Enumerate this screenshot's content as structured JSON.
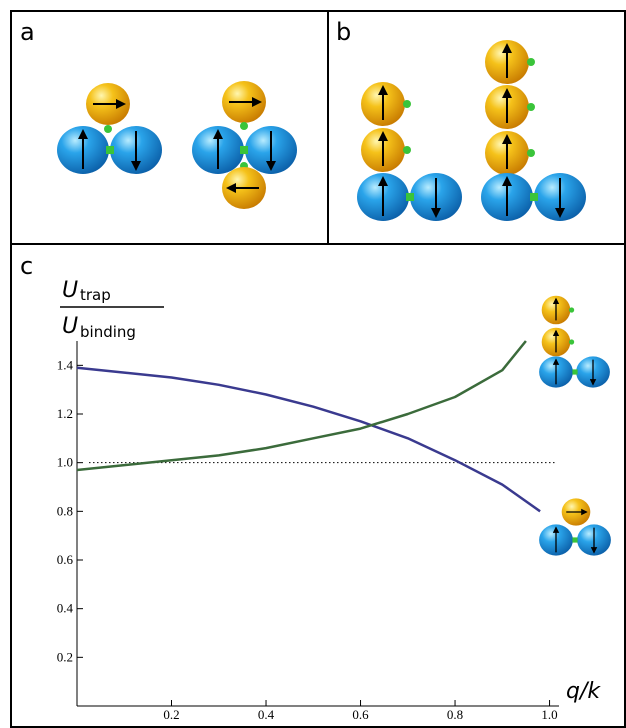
{
  "panel_labels": [
    "a",
    "b"
  ],
  "chart_data": {
    "type": "line",
    "panel_label": "c",
    "y_label": {
      "symbol": "U",
      "top_sub": "trap",
      "bottom_sub": "binding"
    },
    "x_label": "q/k",
    "xlim": [
      0,
      1.02
    ],
    "ylim": [
      0,
      1.5
    ],
    "xticks": [
      0.2,
      0.4,
      0.6,
      0.8,
      {
        "value": 1,
        "label": "1.0"
      }
    ],
    "yticks": [
      0.2,
      0.4,
      0.6,
      0.8,
      {
        "value": 1,
        "label": "1.0"
      },
      1.2,
      1.4
    ],
    "reference_line": 1,
    "series": [
      {
        "color": "#3a3a8f",
        "x": [
          0,
          0.1,
          0.2,
          0.3,
          0.4,
          0.5,
          0.6,
          0.7,
          0.8,
          0.9,
          0.98
        ],
        "values": [
          1.39,
          1.37,
          1.35,
          1.32,
          1.28,
          1.23,
          1.17,
          1.1,
          1.01,
          0.91,
          0.8
        ]
      },
      {
        "color": "#3b6b3b",
        "x": [
          0,
          0.1,
          0.2,
          0.3,
          0.4,
          0.5,
          0.6,
          0.7,
          0.8,
          0.9,
          0.95
        ],
        "values": [
          0.97,
          0.99,
          1.01,
          1.03,
          1.06,
          1.1,
          1.14,
          1.2,
          1.27,
          1.38,
          1.5
        ]
      }
    ]
  }
}
